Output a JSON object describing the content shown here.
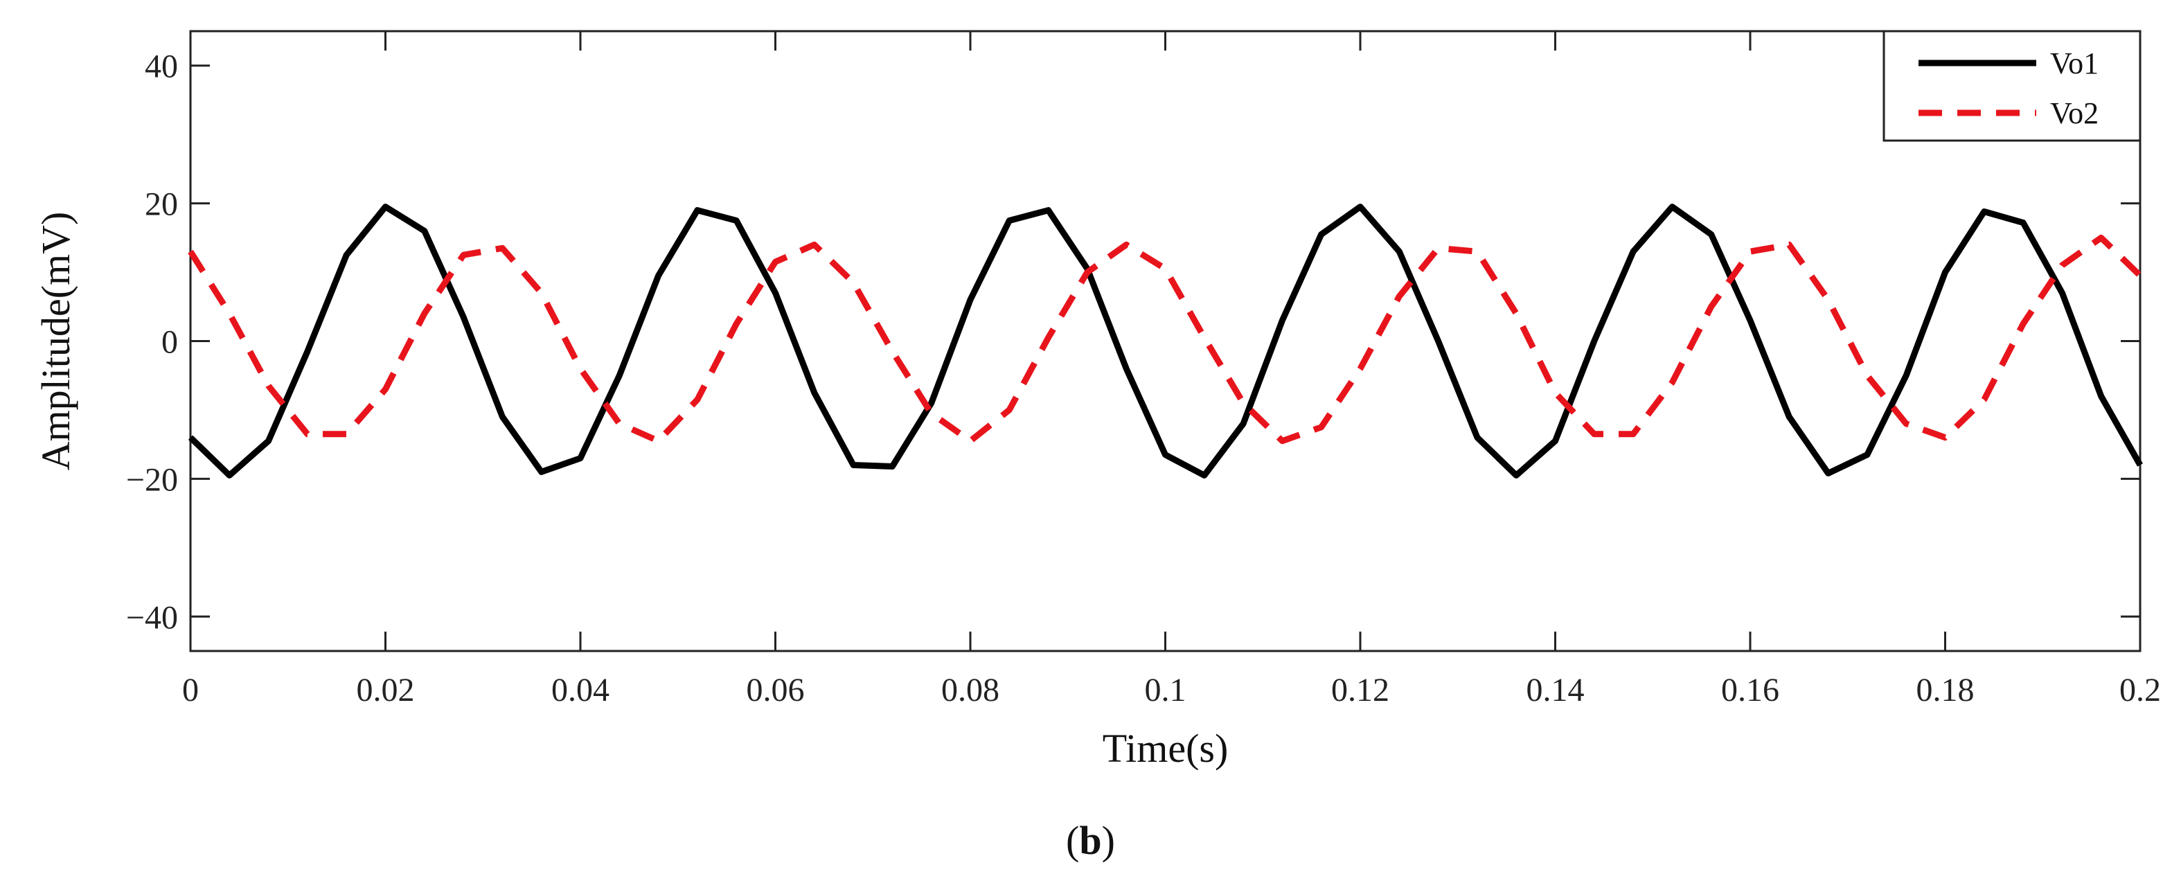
{
  "chart_data": {
    "type": "line",
    "title": "",
    "xlabel": "Time(s)",
    "ylabel": "Amplitude(mV)",
    "xlim": [
      0,
      0.2
    ],
    "ylim": [
      -45,
      45
    ],
    "xticks": [
      0,
      0.02,
      0.04,
      0.06,
      0.08,
      0.1,
      0.12,
      0.14,
      0.16,
      0.18,
      0.2
    ],
    "xtick_labels": [
      "0",
      "0.02",
      "0.04",
      "0.06",
      "0.08",
      "0.1",
      "0.12",
      "0.14",
      "0.16",
      "0.18",
      "0.2"
    ],
    "yticks": [
      -40,
      -20,
      0,
      20,
      40
    ],
    "ytick_labels": [
      "−40",
      "−20",
      "0",
      "20",
      "40"
    ],
    "grid": false,
    "legend_position": "top-right",
    "series": [
      {
        "name": "Vo1",
        "color": "#000000",
        "style": "solid",
        "x": [
          0,
          0.004,
          0.008,
          0.012,
          0.016,
          0.02,
          0.024,
          0.028,
          0.032,
          0.036,
          0.04,
          0.044,
          0.048,
          0.052,
          0.056,
          0.06,
          0.064,
          0.068,
          0.072,
          0.076,
          0.08,
          0.084,
          0.088,
          0.092,
          0.096,
          0.1,
          0.104,
          0.108,
          0.112,
          0.116,
          0.12,
          0.124,
          0.128,
          0.132,
          0.136,
          0.14,
          0.144,
          0.148,
          0.152,
          0.156,
          0.16,
          0.164,
          0.168,
          0.172,
          0.176,
          0.18,
          0.184,
          0.188,
          0.192,
          0.196,
          0.2
        ],
        "values": [
          -14,
          -19.5,
          -14.5,
          -1.5,
          12.5,
          19.5,
          16,
          3.5,
          -11,
          -19,
          -17,
          -5,
          9.5,
          19,
          17.5,
          7,
          -7.5,
          -18,
          -18.2,
          -9,
          6,
          17.5,
          19,
          10.5,
          -4,
          -16.5,
          -19.5,
          -12,
          3,
          15.5,
          19.5,
          13,
          0,
          -14,
          -19.5,
          -14.5,
          0,
          13,
          19.5,
          15.5,
          3,
          -11,
          -19.2,
          -16.5,
          -5,
          10,
          18.8,
          17.2,
          7,
          -8,
          -18
        ]
      },
      {
        "name": "Vo2",
        "color": "#e8141c",
        "style": "dashed",
        "x": [
          0,
          0.004,
          0.008,
          0.012,
          0.016,
          0.02,
          0.024,
          0.028,
          0.032,
          0.036,
          0.04,
          0.044,
          0.048,
          0.052,
          0.056,
          0.06,
          0.064,
          0.068,
          0.072,
          0.076,
          0.08,
          0.084,
          0.088,
          0.092,
          0.096,
          0.1,
          0.104,
          0.108,
          0.112,
          0.116,
          0.12,
          0.124,
          0.128,
          0.132,
          0.136,
          0.14,
          0.144,
          0.148,
          0.152,
          0.156,
          0.16,
          0.164,
          0.168,
          0.172,
          0.176,
          0.18,
          0.184,
          0.188,
          0.192,
          0.196,
          0.2
        ],
        "values": [
          13,
          4,
          -6.5,
          -13.5,
          -13.5,
          -7,
          4,
          12.5,
          13.5,
          7,
          -4,
          -12,
          -14.5,
          -8.5,
          2.5,
          11.5,
          14,
          8.5,
          -1.5,
          -10.5,
          -14.5,
          -10,
          0.5,
          10,
          14,
          10.5,
          0.5,
          -9,
          -14.5,
          -12.5,
          -4,
          6.5,
          13.5,
          13,
          4,
          -7.5,
          -13.5,
          -13.5,
          -6,
          5,
          13,
          14,
          6,
          -5,
          -12,
          -14,
          -8.5,
          2.5,
          11,
          15,
          9.5
        ]
      }
    ]
  },
  "caption": {
    "open": "(",
    "label": "b",
    "close": ")"
  }
}
